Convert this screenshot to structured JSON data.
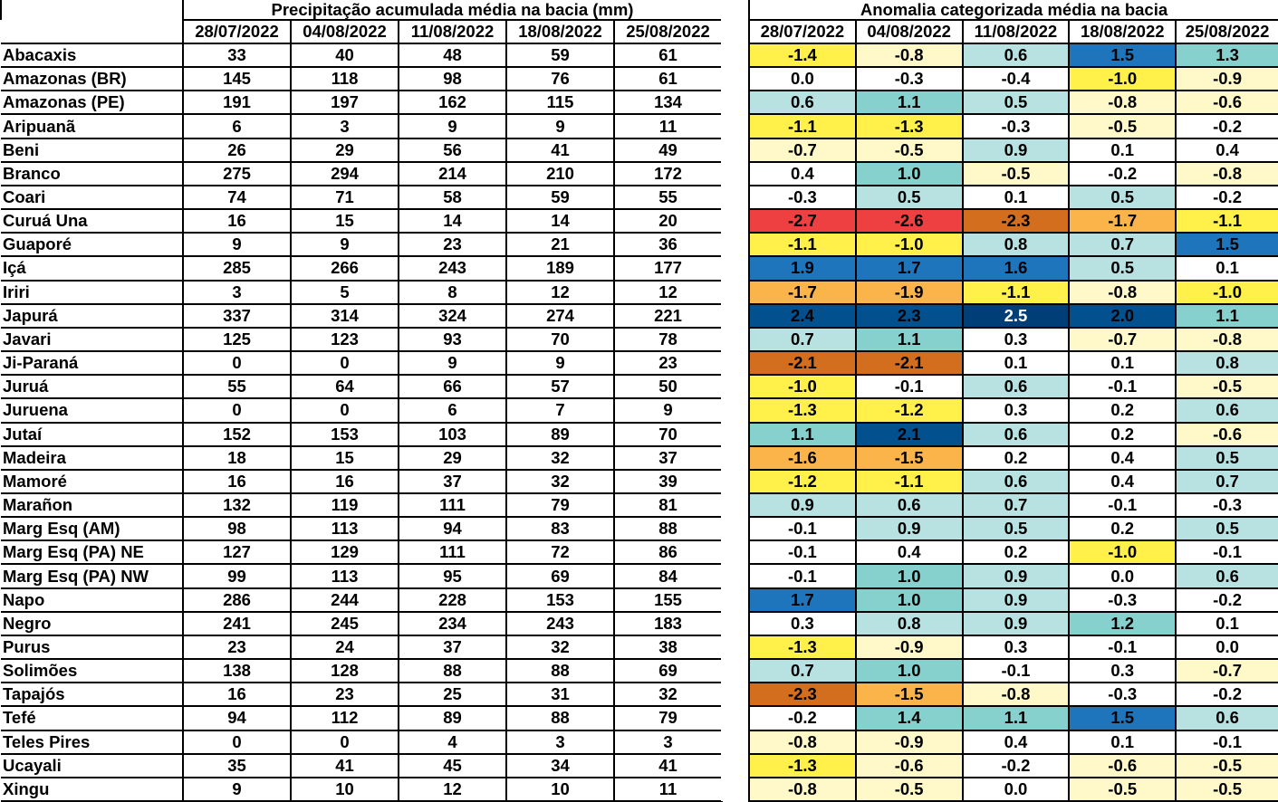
{
  "precip_table": {
    "title": "Precipitação acumulada média na bacia (mm)",
    "dates": [
      "28/07/2022",
      "04/08/2022",
      "11/08/2022",
      "18/08/2022",
      "25/08/2022"
    ]
  },
  "anomaly_table": {
    "title": "Anomalia categorizada média na bacia",
    "dates": [
      "28/07/2022",
      "04/08/2022",
      "11/08/2022",
      "18/08/2022",
      "25/08/2022"
    ]
  },
  "colors": {
    "white": "#FFFFFF",
    "pale_yellow": "#FFF9C9",
    "yellow": "#FFF04A",
    "orange": "#FBB44A",
    "dark_orange": "#D26E1E",
    "red": "#EE4040",
    "pale_teal": "#B8E2E2",
    "teal": "#86D0CE",
    "blue": "#1E75BC",
    "dark_blue": "#03508E",
    "darkest_blue": "#003E78"
  },
  "basins": [
    {
      "name": "Abacaxis",
      "precip": [
        "33",
        "40",
        "48",
        "59",
        "61"
      ],
      "anom": [
        "-1.4",
        "-0.8",
        "0.6",
        "1.5",
        "1.3"
      ]
    },
    {
      "name": "Amazonas (BR)",
      "precip": [
        "145",
        "118",
        "98",
        "76",
        "61"
      ],
      "anom": [
        "0.0",
        "-0.3",
        "-0.4",
        "-1.0",
        "-0.9"
      ]
    },
    {
      "name": "Amazonas (PE)",
      "precip": [
        "191",
        "197",
        "162",
        "115",
        "134"
      ],
      "anom": [
        "0.6",
        "1.1",
        "0.5",
        "-0.8",
        "-0.6"
      ]
    },
    {
      "name": "Aripuanã",
      "precip": [
        "6",
        "3",
        "9",
        "9",
        "11"
      ],
      "anom": [
        "-1.1",
        "-1.3",
        "-0.3",
        "-0.5",
        "-0.2"
      ]
    },
    {
      "name": "Beni",
      "precip": [
        "26",
        "29",
        "56",
        "41",
        "49"
      ],
      "anom": [
        "-0.7",
        "-0.5",
        "0.9",
        "0.1",
        "0.4"
      ]
    },
    {
      "name": "Branco",
      "precip": [
        "275",
        "294",
        "214",
        "210",
        "172"
      ],
      "anom": [
        "0.4",
        "1.0",
        "-0.5",
        "-0.2",
        "-0.8"
      ]
    },
    {
      "name": "Coari",
      "precip": [
        "74",
        "71",
        "58",
        "59",
        "55"
      ],
      "anom": [
        "-0.3",
        "0.5",
        "0.1",
        "0.5",
        "-0.2"
      ]
    },
    {
      "name": "Curuá Una",
      "precip": [
        "16",
        "15",
        "14",
        "14",
        "20"
      ],
      "anom": [
        "-2.7",
        "-2.6",
        "-2.3",
        "-1.7",
        "-1.1"
      ]
    },
    {
      "name": "Guaporé",
      "precip": [
        "9",
        "9",
        "23",
        "21",
        "36"
      ],
      "anom": [
        "-1.1",
        "-1.0",
        "0.8",
        "0.7",
        "1.5"
      ]
    },
    {
      "name": "Içá",
      "precip": [
        "285",
        "266",
        "243",
        "189",
        "177"
      ],
      "anom": [
        "1.9",
        "1.7",
        "1.6",
        "0.5",
        "0.1"
      ]
    },
    {
      "name": "Iriri",
      "precip": [
        "3",
        "5",
        "8",
        "12",
        "12"
      ],
      "anom": [
        "-1.7",
        "-1.9",
        "-1.1",
        "-0.8",
        "-1.0"
      ]
    },
    {
      "name": "Japurá",
      "precip": [
        "337",
        "314",
        "324",
        "274",
        "221"
      ],
      "anom": [
        "2.4",
        "2.3",
        "2.5",
        "2.0",
        "1.1"
      ]
    },
    {
      "name": "Javari",
      "precip": [
        "125",
        "123",
        "93",
        "70",
        "78"
      ],
      "anom": [
        "0.7",
        "1.1",
        "0.3",
        "-0.7",
        "-0.8"
      ]
    },
    {
      "name": "Ji-Paraná",
      "precip": [
        "0",
        "0",
        "9",
        "9",
        "23"
      ],
      "anom": [
        "-2.1",
        "-2.1",
        "0.1",
        "0.1",
        "0.8"
      ]
    },
    {
      "name": "Juruá",
      "precip": [
        "55",
        "64",
        "66",
        "57",
        "50"
      ],
      "anom": [
        "-1.0",
        "-0.1",
        "0.6",
        "-0.1",
        "-0.5"
      ]
    },
    {
      "name": "Juruena",
      "precip": [
        "0",
        "0",
        "6",
        "7",
        "9"
      ],
      "anom": [
        "-1.3",
        "-1.2",
        "0.3",
        "0.2",
        "0.6"
      ]
    },
    {
      "name": "Jutaí",
      "precip": [
        "152",
        "153",
        "103",
        "89",
        "70"
      ],
      "anom": [
        "1.1",
        "2.1",
        "0.6",
        "0.2",
        "-0.6"
      ]
    },
    {
      "name": "Madeira",
      "precip": [
        "18",
        "15",
        "29",
        "32",
        "37"
      ],
      "anom": [
        "-1.6",
        "-1.5",
        "0.2",
        "0.4",
        "0.5"
      ]
    },
    {
      "name": "Mamoré",
      "precip": [
        "16",
        "16",
        "37",
        "32",
        "39"
      ],
      "anom": [
        "-1.2",
        "-1.1",
        "0.6",
        "0.4",
        "0.7"
      ]
    },
    {
      "name": "Marañon",
      "precip": [
        "132",
        "119",
        "111",
        "79",
        "81"
      ],
      "anom": [
        "0.9",
        "0.6",
        "0.7",
        "-0.1",
        "-0.3"
      ]
    },
    {
      "name": "Marg Esq (AM)",
      "precip": [
        "98",
        "113",
        "94",
        "83",
        "88"
      ],
      "anom": [
        "-0.1",
        "0.9",
        "0.5",
        "0.2",
        "0.5"
      ]
    },
    {
      "name": "Marg Esq (PA) NE",
      "precip": [
        "127",
        "129",
        "111",
        "72",
        "86"
      ],
      "anom": [
        "-0.1",
        "0.4",
        "0.2",
        "-1.0",
        "-0.1"
      ]
    },
    {
      "name": "Marg Esq (PA) NW",
      "precip": [
        "99",
        "113",
        "95",
        "69",
        "84"
      ],
      "anom": [
        "-0.1",
        "1.0",
        "0.9",
        "0.0",
        "0.6"
      ]
    },
    {
      "name": "Napo",
      "precip": [
        "286",
        "244",
        "228",
        "153",
        "155"
      ],
      "anom": [
        "1.7",
        "1.0",
        "0.9",
        "-0.3",
        "-0.2"
      ]
    },
    {
      "name": "Negro",
      "precip": [
        "241",
        "245",
        "234",
        "243",
        "183"
      ],
      "anom": [
        "0.3",
        "0.8",
        "0.9",
        "1.2",
        "0.1"
      ]
    },
    {
      "name": "Purus",
      "precip": [
        "23",
        "24",
        "37",
        "32",
        "38"
      ],
      "anom": [
        "-1.3",
        "-0.9",
        "0.3",
        "-0.1",
        "0.0"
      ]
    },
    {
      "name": "Solimões",
      "precip": [
        "138",
        "128",
        "88",
        "88",
        "69"
      ],
      "anom": [
        "0.7",
        "1.0",
        "-0.1",
        "0.3",
        "-0.7"
      ]
    },
    {
      "name": "Tapajós",
      "precip": [
        "16",
        "23",
        "25",
        "31",
        "32"
      ],
      "anom": [
        "-2.3",
        "-1.5",
        "-0.8",
        "-0.3",
        "-0.2"
      ]
    },
    {
      "name": "Tefé",
      "precip": [
        "94",
        "112",
        "89",
        "88",
        "79"
      ],
      "anom": [
        "-0.2",
        "1.4",
        "1.1",
        "1.5",
        "0.6"
      ]
    },
    {
      "name": "Teles Pires",
      "precip": [
        "0",
        "0",
        "4",
        "3",
        "3"
      ],
      "anom": [
        "-0.8",
        "-0.9",
        "0.4",
        "0.1",
        "-0.1"
      ]
    },
    {
      "name": "Ucayali",
      "precip": [
        "35",
        "41",
        "45",
        "34",
        "41"
      ],
      "anom": [
        "-1.3",
        "-0.6",
        "-0.2",
        "-0.6",
        "-0.5"
      ]
    },
    {
      "name": "Xingu",
      "precip": [
        "9",
        "10",
        "12",
        "10",
        "11"
      ],
      "anom": [
        "-0.8",
        "-0.5",
        "0.0",
        "-0.5",
        "-0.5"
      ]
    }
  ]
}
